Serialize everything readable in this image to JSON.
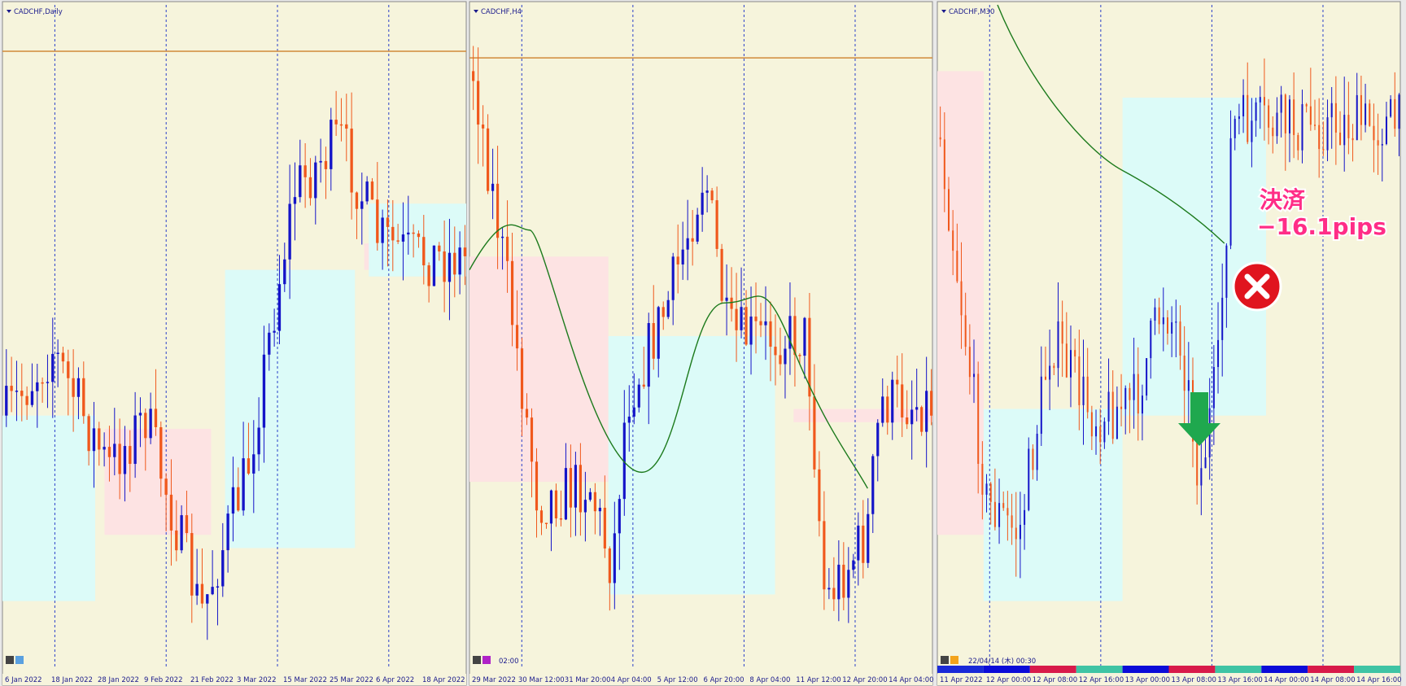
{
  "panels": [
    {
      "title": "CADCHF,Daily",
      "x_labels": [
        "6 Jan 2022",
        "18 Jan 2022",
        "28 Jan 2022",
        "9 Feb 2022",
        "21 Feb 2022",
        "3 Mar 2022",
        "15 Mar 2022",
        "25 Mar 2022",
        "6 Apr 2022",
        "18 Apr 2022"
      ]
    },
    {
      "title": "CADCHF,H4",
      "x_labels": [
        "29 Mar 2022",
        "30 Mar 12:00",
        "31 Mar 20:00",
        "4 Apr 04:00",
        "5 Apr 12:00",
        "6 Apr 20:00",
        "8 Apr 04:00",
        "11 Apr 12:00",
        "12 Apr 20:00",
        "14 Apr 04:00"
      ],
      "status": "02:00"
    },
    {
      "title": "CADCHF,M30",
      "x_labels": [
        "11 Apr 2022",
        "12 Apr 00:00",
        "12 Apr 08:00",
        "12 Apr 16:00",
        "13 Apr 00:00",
        "13 Apr 08:00",
        "13 Apr 16:00",
        "14 Apr 00:00",
        "14 Apr 08:00",
        "14 Apr 16:00"
      ],
      "status": "22/04/14 (木) 00:30"
    }
  ],
  "annotation": {
    "line1": "決済",
    "line2": "−16.1pips"
  }
}
